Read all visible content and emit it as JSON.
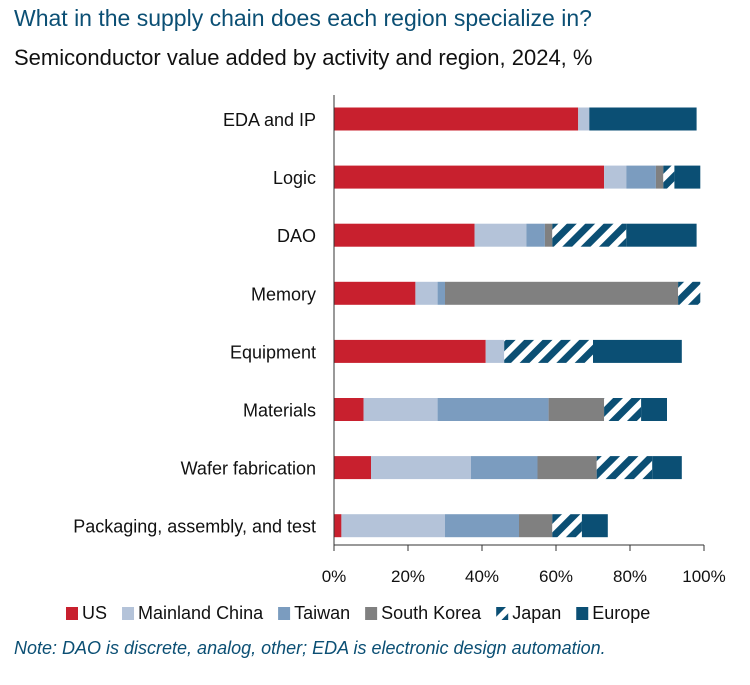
{
  "header": {
    "title": "What in the supply chain does each region specialize in?",
    "subtitle": "Semiconductor value added by activity and region, 2024, %"
  },
  "note": "Note: DAO is discrete, analog, other; EDA is electronic design automation.",
  "chart_data": {
    "type": "bar",
    "orientation": "horizontal",
    "stacked": true,
    "categories": [
      "EDA and IP",
      "Logic",
      "DAO",
      "Memory",
      "Equipment",
      "Materials",
      "Wafer fabrication",
      "Packaging, assembly, and test"
    ],
    "series": [
      {
        "name": "US",
        "color": "#c8202e",
        "pattern": "solid",
        "values": [
          66,
          73,
          38,
          22,
          41,
          8,
          10,
          2
        ]
      },
      {
        "name": "Mainland China",
        "color": "#b4c3d9",
        "pattern": "solid",
        "values": [
          3,
          6,
          14,
          6,
          5,
          20,
          27,
          28
        ]
      },
      {
        "name": "Taiwan",
        "color": "#7b9cbf",
        "pattern": "solid",
        "values": [
          0,
          8,
          5,
          2,
          0,
          30,
          18,
          20
        ]
      },
      {
        "name": "South Korea",
        "color": "#808080",
        "pattern": "solid",
        "values": [
          0,
          2,
          2,
          63,
          0,
          15,
          16,
          9
        ]
      },
      {
        "name": "Japan",
        "color": "#0b4f74",
        "pattern": "diagonal-stripes",
        "values": [
          0,
          3,
          20,
          6,
          24,
          10,
          15,
          8
        ]
      },
      {
        "name": "Europe",
        "color": "#0b4f74",
        "pattern": "solid",
        "values": [
          29,
          7,
          19,
          0,
          24,
          7,
          8,
          7
        ]
      }
    ],
    "xlim": [
      0,
      100
    ],
    "x_ticks": [
      "0%",
      "20%",
      "40%",
      "60%",
      "80%",
      "100%"
    ],
    "grid": false,
    "legend_position": "bottom"
  }
}
